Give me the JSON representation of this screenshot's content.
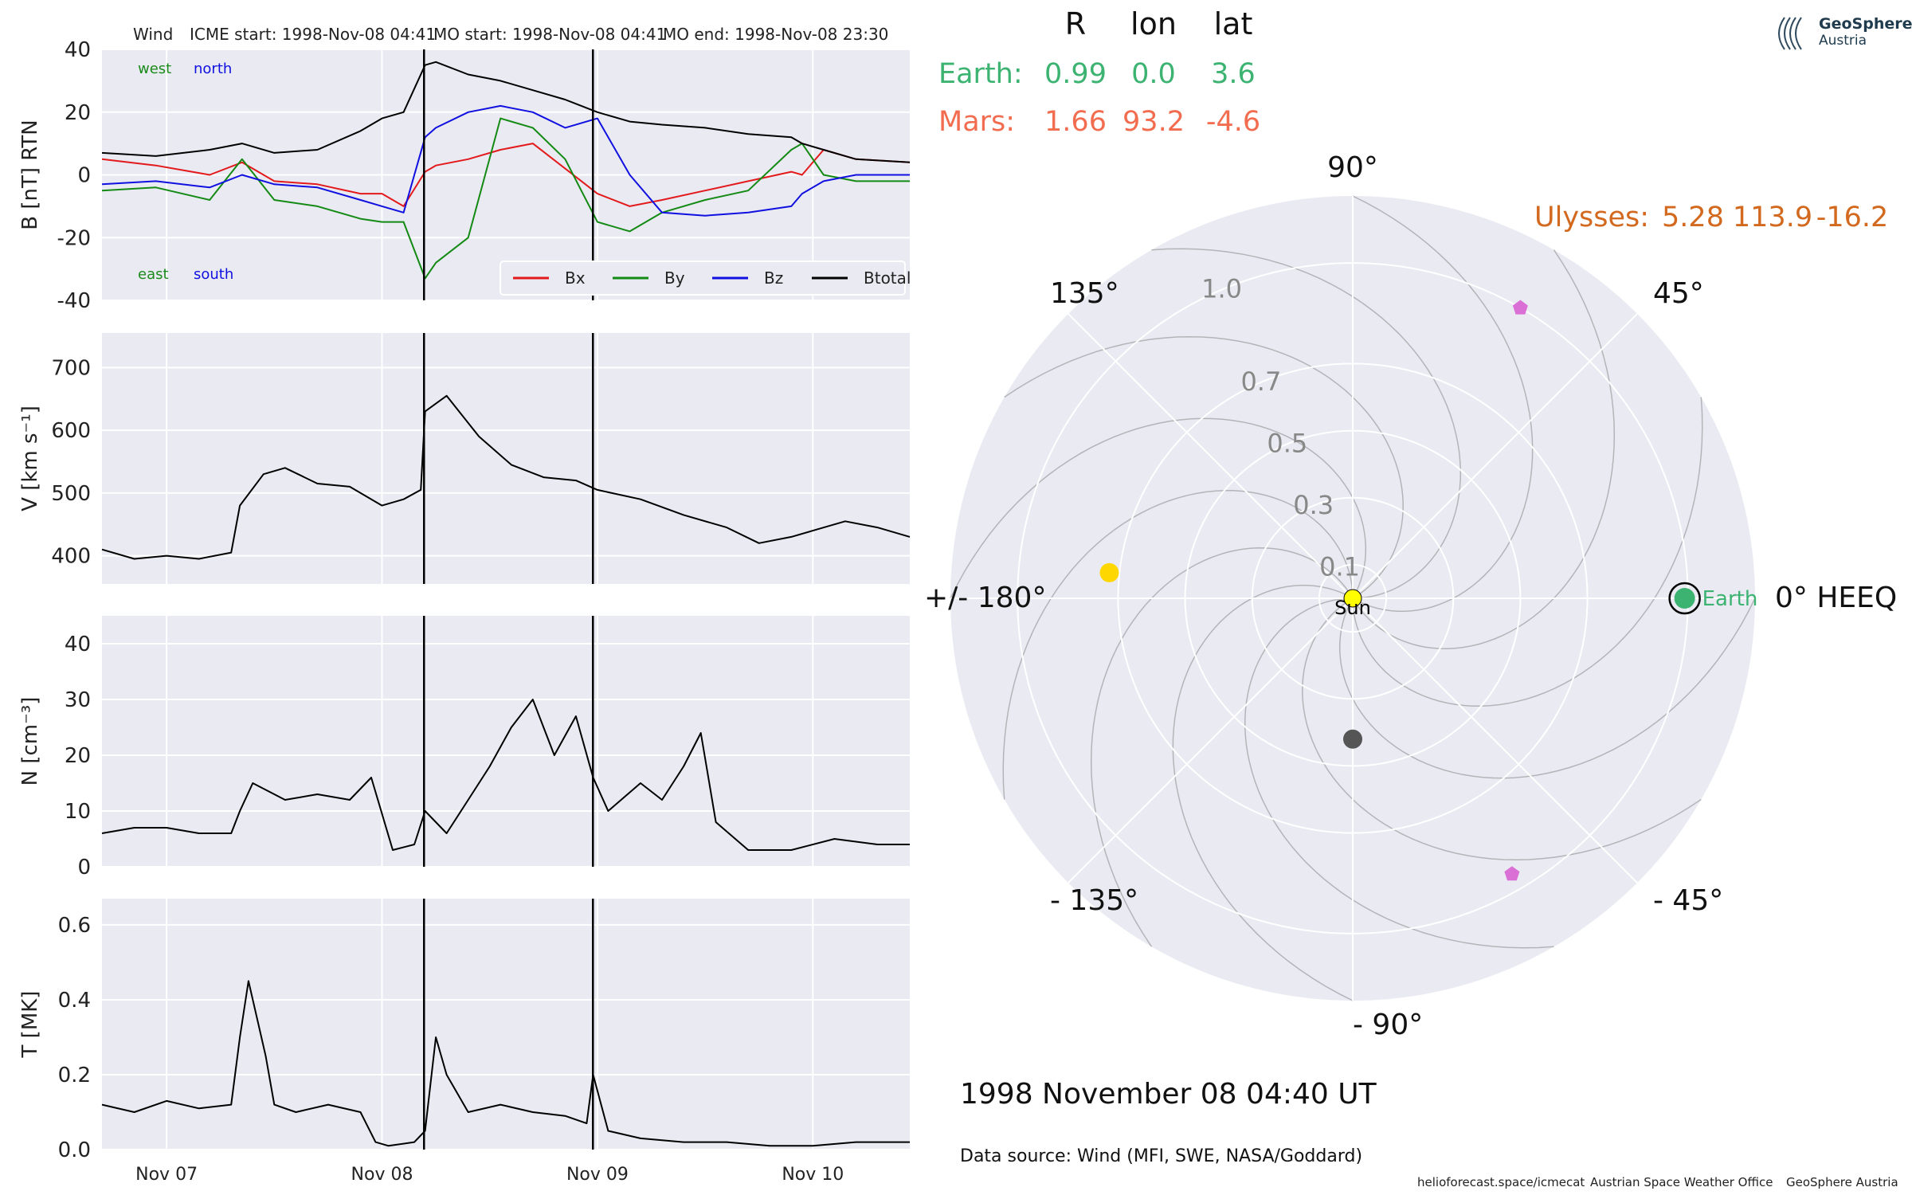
{
  "header": {
    "spacecraft": "Wind",
    "icme_start": "ICME start: 1998-Nov-08 04:41",
    "mo_start": "MO start: 1998-Nov-08 04:41",
    "mo_end": "MO end: 1998-Nov-08 23:30"
  },
  "logo": {
    "name": "GeoSphere",
    "sub": "Austria"
  },
  "positions_table": {
    "headers": [
      "R",
      "lon",
      "lat"
    ],
    "rows": [
      {
        "name": "Earth:",
        "values": [
          "0.99",
          "0.0",
          "3.6"
        ],
        "color": "#3cb371"
      },
      {
        "name": "Mars:",
        "values": [
          "1.66",
          "93.2",
          "-4.6"
        ],
        "color": "#f26d4f"
      }
    ],
    "extra_row": {
      "name": "Ulysses:",
      "values": [
        "5.28",
        "113.9",
        "-16.2"
      ],
      "color": "#d2691e"
    }
  },
  "timestamp": "1998 November 08  04:40 UT",
  "data_source": "Data source: Wind (MFI, SWE, NASA/Goddard)",
  "footer": [
    "helioforecast.space/icmecat",
    "Austrian Space Weather Office",
    "GeoSphere Austria"
  ],
  "chart_data": [
    {
      "type": "line",
      "panel": "magnetic_field",
      "ylabel": "B [nT] RTN",
      "ylim": [
        -40,
        40
      ],
      "yticks": [
        -40,
        -20,
        0,
        20,
        40
      ],
      "xlim_days": [
        6.7,
        10.45
      ],
      "xticks": [
        {
          "day": 7,
          "label": "Nov 07"
        },
        {
          "day": 8,
          "label": "Nov 08"
        },
        {
          "day": 9,
          "label": "Nov 09"
        },
        {
          "day": 10,
          "label": "Nov 10"
        }
      ],
      "corner_labels": [
        {
          "text": "west",
          "color": "#1a8a1a",
          "pos": "top-left"
        },
        {
          "text": "north",
          "color": "#1010e0",
          "pos": "top-left-2"
        },
        {
          "text": "east",
          "color": "#1a8a1a",
          "pos": "bottom-left"
        },
        {
          "text": "south",
          "color": "#1010e0",
          "pos": "bottom-left-2"
        }
      ],
      "legend": "lower-right",
      "series": [
        {
          "name": "Bx",
          "color": "#e31a1c",
          "x": [
            6.7,
            6.95,
            7.2,
            7.35,
            7.5,
            7.7,
            7.9,
            8.0,
            8.1,
            8.2,
            8.25,
            8.4,
            8.55,
            8.7,
            8.85,
            9.0,
            9.15,
            9.3,
            9.5,
            9.7,
            9.9,
            9.95,
            10.05,
            10.2,
            10.45
          ],
          "y": [
            5,
            3,
            0,
            4,
            -2,
            -3,
            -6,
            -6,
            -10,
            1,
            3,
            5,
            8,
            10,
            2,
            -6,
            -10,
            -8,
            -5,
            -2,
            1,
            0,
            8,
            5,
            4
          ]
        },
        {
          "name": "By",
          "color": "#138a13",
          "x": [
            6.7,
            6.95,
            7.2,
            7.35,
            7.5,
            7.7,
            7.9,
            8.0,
            8.1,
            8.2,
            8.25,
            8.4,
            8.55,
            8.7,
            8.85,
            9.0,
            9.15,
            9.3,
            9.5,
            9.7,
            9.9,
            9.95,
            10.05,
            10.2,
            10.45
          ],
          "y": [
            -5,
            -4,
            -8,
            5,
            -8,
            -10,
            -14,
            -15,
            -15,
            -33,
            -28,
            -20,
            18,
            15,
            5,
            -15,
            -18,
            -12,
            -8,
            -5,
            8,
            10,
            0,
            -2,
            -2
          ]
        },
        {
          "name": "Bz",
          "color": "#1010e0",
          "x": [
            6.7,
            6.95,
            7.2,
            7.35,
            7.5,
            7.7,
            7.9,
            8.0,
            8.1,
            8.2,
            8.25,
            8.4,
            8.55,
            8.7,
            8.85,
            9.0,
            9.15,
            9.3,
            9.5,
            9.7,
            9.9,
            9.95,
            10.05,
            10.2,
            10.45
          ],
          "y": [
            -3,
            -2,
            -4,
            0,
            -3,
            -4,
            -8,
            -10,
            -12,
            12,
            15,
            20,
            22,
            20,
            15,
            18,
            0,
            -12,
            -13,
            -12,
            -10,
            -6,
            -2,
            0,
            0
          ]
        },
        {
          "name": "Btotal",
          "color": "#000000",
          "x": [
            6.7,
            6.95,
            7.2,
            7.35,
            7.5,
            7.7,
            7.9,
            8.0,
            8.1,
            8.2,
            8.25,
            8.4,
            8.55,
            8.7,
            8.85,
            9.0,
            9.15,
            9.3,
            9.5,
            9.7,
            9.9,
            9.95,
            10.05,
            10.2,
            10.45
          ],
          "y": [
            7,
            6,
            8,
            10,
            7,
            8,
            14,
            18,
            20,
            35,
            36,
            32,
            30,
            27,
            24,
            20,
            17,
            16,
            15,
            13,
            12,
            10,
            8,
            5,
            4
          ]
        }
      ],
      "vlines_days": [
        8.195,
        8.979
      ]
    },
    {
      "type": "line",
      "panel": "speed",
      "ylabel": "V [km s⁻¹]",
      "ylim": [
        355,
        755
      ],
      "yticks": [
        400,
        500,
        600,
        700
      ],
      "xlim_days": [
        6.7,
        10.45
      ],
      "series": [
        {
          "name": "V",
          "color": "#000000",
          "x": [
            6.7,
            6.85,
            7.0,
            7.15,
            7.3,
            7.34,
            7.45,
            7.55,
            7.7,
            7.85,
            8.0,
            8.1,
            8.18,
            8.2,
            8.3,
            8.45,
            8.6,
            8.75,
            8.9,
            9.0,
            9.2,
            9.4,
            9.6,
            9.75,
            9.9,
            10.0,
            10.15,
            10.3,
            10.45
          ],
          "y": [
            410,
            395,
            400,
            395,
            405,
            480,
            530,
            540,
            515,
            510,
            480,
            490,
            505,
            630,
            655,
            590,
            545,
            525,
            520,
            505,
            490,
            465,
            445,
            420,
            430,
            440,
            455,
            445,
            430
          ]
        }
      ],
      "vlines_days": [
        8.195,
        8.979
      ]
    },
    {
      "type": "line",
      "panel": "density",
      "ylabel": "N [cm⁻³]",
      "ylim": [
        0,
        45
      ],
      "yticks": [
        0,
        10,
        20,
        30,
        40
      ],
      "xlim_days": [
        6.7,
        10.45
      ],
      "series": [
        {
          "name": "N",
          "color": "#000000",
          "x": [
            6.7,
            6.85,
            7.0,
            7.15,
            7.3,
            7.34,
            7.4,
            7.55,
            7.7,
            7.85,
            7.95,
            8.05,
            8.15,
            8.2,
            8.3,
            8.4,
            8.5,
            8.6,
            8.7,
            8.8,
            8.9,
            8.98,
            9.05,
            9.2,
            9.3,
            9.4,
            9.48,
            9.55,
            9.7,
            9.9,
            10.1,
            10.3,
            10.45
          ],
          "y": [
            6,
            7,
            7,
            6,
            6,
            10,
            15,
            12,
            13,
            12,
            16,
            3,
            4,
            10,
            6,
            12,
            18,
            25,
            30,
            20,
            27,
            16,
            10,
            15,
            12,
            18,
            24,
            8,
            3,
            3,
            5,
            4,
            4
          ]
        }
      ],
      "vlines_days": [
        8.195,
        8.979
      ]
    },
    {
      "type": "line",
      "panel": "temperature",
      "ylabel": "T [MK]",
      "ylim": [
        0,
        0.67
      ],
      "yticks": [
        0.0,
        0.2,
        0.4,
        0.6
      ],
      "xlim_days": [
        6.7,
        10.45
      ],
      "series": [
        {
          "name": "T",
          "color": "#000000",
          "x": [
            6.7,
            6.85,
            7.0,
            7.15,
            7.3,
            7.34,
            7.38,
            7.42,
            7.46,
            7.5,
            7.6,
            7.75,
            7.9,
            7.97,
            8.03,
            8.15,
            8.2,
            8.25,
            8.3,
            8.4,
            8.55,
            8.7,
            8.85,
            8.95,
            8.98,
            9.05,
            9.2,
            9.4,
            9.6,
            9.8,
            10.0,
            10.2,
            10.45
          ],
          "y": [
            0.12,
            0.1,
            0.13,
            0.11,
            0.12,
            0.3,
            0.45,
            0.35,
            0.25,
            0.12,
            0.1,
            0.12,
            0.1,
            0.02,
            0.01,
            0.02,
            0.05,
            0.3,
            0.2,
            0.1,
            0.12,
            0.1,
            0.09,
            0.07,
            0.2,
            0.05,
            0.03,
            0.02,
            0.02,
            0.01,
            0.01,
            0.02,
            0.02
          ]
        }
      ],
      "vlines_days": [
        8.195,
        8.979
      ]
    },
    {
      "type": "scatter",
      "panel": "polar_position",
      "projection": "polar",
      "radial_ticks": [
        {
          "r": 0.1,
          "label": "0.1"
        },
        {
          "r": 0.3,
          "label": "0.3"
        },
        {
          "r": 0.5,
          "label": "0.5"
        },
        {
          "r": 0.7,
          "label": "0.7"
        },
        {
          "r": 1.0,
          "label": "1.0"
        }
      ],
      "angle_labels": [
        {
          "deg": 0,
          "label": "0° HEEQ"
        },
        {
          "deg": 45,
          "label": "45°"
        },
        {
          "deg": 90,
          "label": "90°"
        },
        {
          "deg": 135,
          "label": "135°"
        },
        {
          "deg": 180,
          "label": "+/- 180°"
        },
        {
          "deg": -135,
          "label": "- 135°"
        },
        {
          "deg": -90,
          "label": "- 90°"
        },
        {
          "deg": -45,
          "label": "- 45°"
        }
      ],
      "points": [
        {
          "name": "Sun",
          "label": "Sun",
          "r": 0.0,
          "lon": 0,
          "color": "#ffff00",
          "marker": "circle"
        },
        {
          "name": "Earth",
          "label": "Earth",
          "r": 0.99,
          "lon": 0.0,
          "color": "#3cb371",
          "marker": "circle-ring"
        },
        {
          "name": "yellow-body",
          "r": 0.73,
          "lon": 174.0,
          "color": "#ffd700",
          "marker": "circle"
        },
        {
          "name": "grey-body",
          "r": 0.42,
          "lon": -90.0,
          "color": "#555555",
          "marker": "circle"
        },
        {
          "name": "magenta-upper",
          "r": 1.0,
          "lon": 60.0,
          "color": "#da70d6",
          "marker": "pentagon"
        },
        {
          "name": "magenta-lower",
          "r": 0.95,
          "lon": -60.0,
          "color": "#da70d6",
          "marker": "pentagon"
        }
      ]
    }
  ]
}
